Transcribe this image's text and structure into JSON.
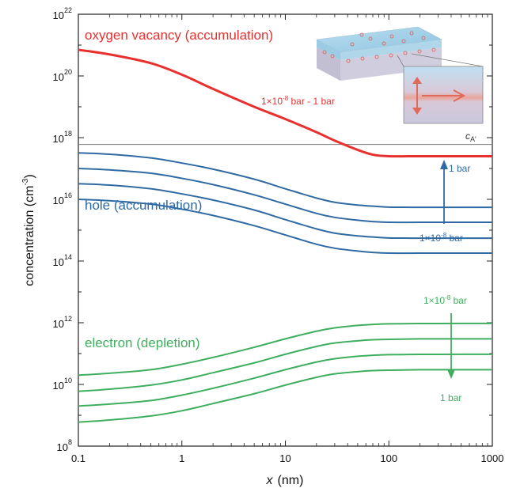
{
  "chart_data": {
    "type": "line",
    "xlabel": "x",
    "xunit": "(nm)",
    "ylabel": "concentration (cm",
    "ylabel_sup": "-3",
    "ylabel_end": ")",
    "xscale": "log",
    "yscale": "log",
    "xlim": [
      0.1,
      1000
    ],
    "ylim": [
      100000000.0,
      1e+22
    ],
    "grid": false,
    "x_ticks": [
      {
        "value": 0.1,
        "label": "0.1"
      },
      {
        "value": 1,
        "label": "1"
      },
      {
        "value": 10,
        "label": "10"
      },
      {
        "value": 100,
        "label": "100"
      },
      {
        "value": 1000,
        "label": "1000"
      }
    ],
    "y_ticks": [
      {
        "value": 100000000.0,
        "base": "10",
        "exp": "8"
      },
      {
        "value": 10000000000.0,
        "base": "10",
        "exp": "10"
      },
      {
        "value": 1000000000000.0,
        "base": "10",
        "exp": "12"
      },
      {
        "value": 100000000000000.0,
        "base": "10",
        "exp": "14"
      },
      {
        "value": 1e+16,
        "base": "10",
        "exp": "16"
      },
      {
        "value": 1e+18,
        "base": "10",
        "exp": "18"
      },
      {
        "value": 1e+20,
        "base": "10",
        "exp": "20"
      },
      {
        "value": 1e+22,
        "base": "10",
        "exp": "22"
      }
    ],
    "x_samples": [
      0.1,
      0.2,
      0.5,
      1,
      2,
      5,
      10,
      20,
      30,
      50,
      70,
      100,
      200,
      500,
      1000
    ],
    "reference_line": {
      "y": 6e+17,
      "label_main": "c",
      "label_sub": "A'"
    },
    "series": [
      {
        "group": "oxygen-vacancy",
        "color": "#e8312f",
        "width": 3,
        "values": [
          7e+20,
          5e+20,
          2.6e+20,
          1.1e+20,
          3.8e+19,
          1e+19,
          4e+18,
          1.5e+18,
          8e+17,
          4e+17,
          2.8e+17,
          2.5e+17,
          2.5e+17,
          2.5e+17,
          2.5e+17
        ]
      },
      {
        "group": "hole",
        "color": "#2f6aa3",
        "width": 2,
        "values": [
          3.2e+17,
          2.9e+17,
          2.2e+17,
          1.5e+17,
          9.5e+16,
          4.5e+16,
          2.2e+16,
          1.1e+16,
          8000000000000000.0,
          6500000000000000.0,
          6000000000000000.0,
          5600000000000000.0,
          5500000000000000.0,
          5500000000000000.0,
          5500000000000000.0
        ]
      },
      {
        "group": "hole",
        "color": "#2f6aa3",
        "width": 2,
        "values": [
          1e+17,
          9e+16,
          7e+16,
          4.8e+16,
          3e+16,
          1.4e+16,
          7000000000000000.0,
          3500000000000000.0,
          2600000000000000.0,
          2100000000000000.0,
          1900000000000000.0,
          1800000000000000.0,
          1800000000000000.0,
          1800000000000000.0,
          1800000000000000.0
        ]
      },
      {
        "group": "hole",
        "color": "#2f6aa3",
        "width": 2,
        "values": [
          3.2e+16,
          2.9e+16,
          2.2e+16,
          1.5e+16,
          9500000000000000.0,
          4500000000000000.0,
          2200000000000000.0,
          1100000000000000.0,
          800000000000000.0,
          650000000000000.0,
          600000000000000.0,
          560000000000000.0,
          550000000000000.0,
          550000000000000.0,
          550000000000000.0
        ]
      },
      {
        "group": "hole",
        "color": "#2f6aa3",
        "width": 2,
        "values": [
          1e+16,
          9000000000000000.0,
          7000000000000000.0,
          4800000000000000.0,
          3000000000000000.0,
          1400000000000000.0,
          700000000000000.0,
          350000000000000.0,
          260000000000000.0,
          210000000000000.0,
          190000000000000.0,
          180000000000000.0,
          180000000000000.0,
          180000000000000.0,
          180000000000000.0
        ]
      },
      {
        "group": "electron",
        "color": "#3fae5e",
        "width": 2,
        "values": [
          20000000000.0,
          23000000000.0,
          30000000000.0,
          45000000000.0,
          75000000000.0,
          160000000000.0,
          300000000000.0,
          530000000000.0,
          680000000000.0,
          820000000000.0,
          880000000000.0,
          920000000000.0,
          940000000000.0,
          950000000000.0,
          950000000000.0
        ]
      },
      {
        "group": "electron",
        "color": "#3fae5e",
        "width": 2,
        "values": [
          6000000000.0,
          7000000000.0,
          9500000000.0,
          14000000000.0,
          24000000000.0,
          50000000000.0,
          95000000000.0,
          170000000000.0,
          220000000000.0,
          260000000000.0,
          280000000000.0,
          290000000000.0,
          300000000000.0,
          300000000000.0,
          300000000000.0
        ]
      },
      {
        "group": "electron",
        "color": "#3fae5e",
        "width": 2,
        "values": [
          2000000000.0,
          2300000000.0,
          3000000000.0,
          4500000000.0,
          7500000000.0,
          16000000000.0,
          30000000000.0,
          53000000000.0,
          68000000000.0,
          82000000000.0,
          88000000000.0,
          92000000000.0,
          94000000000.0,
          95000000000.0,
          95000000000.0
        ]
      },
      {
        "group": "electron",
        "color": "#3fae5e",
        "width": 2,
        "values": [
          600000000.0,
          700000000.0,
          950000000.0,
          1400000000.0,
          2400000000.0,
          5000000000.0,
          9500000000.0,
          17000000000.0,
          22000000000.0,
          26000000000.0,
          28000000000.0,
          29000000000.0,
          30000000000.0,
          30000000000.0,
          30000000000.0
        ]
      }
    ],
    "labels": {
      "oxygen_vacancy": "oxygen vacancy (accumulation)",
      "hole": "hole (accumulation)",
      "electron": "electron (depletion)"
    },
    "annotations": {
      "vacancy_range": {
        "pre": "1×10",
        "exp": "-8",
        "post": " bar - 1 bar"
      },
      "hole_top": "1 bar",
      "hole_bottom": {
        "pre": "1×10",
        "exp": "-8",
        "post": " bar"
      },
      "electron_top": {
        "pre": "1×10",
        "exp": "-8",
        "post": " bar"
      },
      "electron_bottom": "1 bar"
    },
    "colors": {
      "vacancy": "#e8312f",
      "hole": "#2f6aa3",
      "electron": "#3fae5e",
      "reference": "#7a7a7a"
    }
  }
}
